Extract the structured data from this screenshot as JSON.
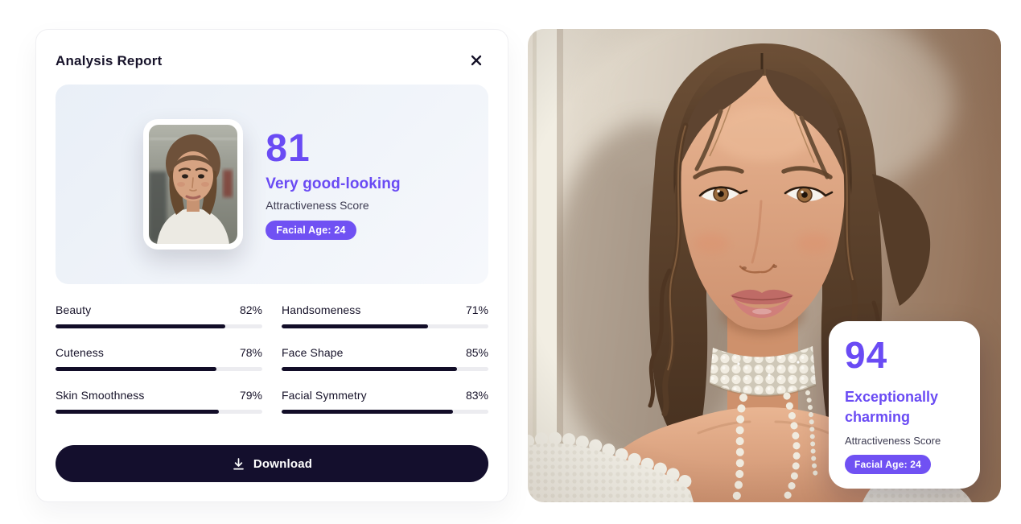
{
  "report": {
    "title": "Analysis Report",
    "summary": {
      "score": "81",
      "verdict": "Very good-looking",
      "score_label": "Attractiveness Score",
      "age_badge": "Facial Age: 24"
    },
    "metrics": [
      {
        "label": "Beauty",
        "value": "82%",
        "pct": 82
      },
      {
        "label": "Handsomeness",
        "value": "71%",
        "pct": 71
      },
      {
        "label": "Cuteness",
        "value": "78%",
        "pct": 78
      },
      {
        "label": "Face Shape",
        "value": "85%",
        "pct": 85
      },
      {
        "label": "Skin Smoothness",
        "value": "79%",
        "pct": 79
      },
      {
        "label": "Facial Symmetry",
        "value": "83%",
        "pct": 83
      }
    ],
    "download_label": "Download"
  },
  "overlay": {
    "score": "94",
    "verdict": "Exceptionally charming",
    "score_label": "Attractiveness Score",
    "age_badge": "Facial Age: 24"
  },
  "icons": {
    "close": "x-icon",
    "download": "download-arrow-icon"
  },
  "colors": {
    "accent": "#6A4BF4",
    "ink": "#17132A",
    "muted": "#3E3C52",
    "bar_fill": "#120D28",
    "bar_track": "#ECECF0",
    "button_bg": "#140F2D",
    "badge_bg": "#7051F3",
    "card_border": "#EFEFF2",
    "panel_grad_start": "#E9EFF7",
    "panel_grad_end": "#F6F8FC"
  }
}
